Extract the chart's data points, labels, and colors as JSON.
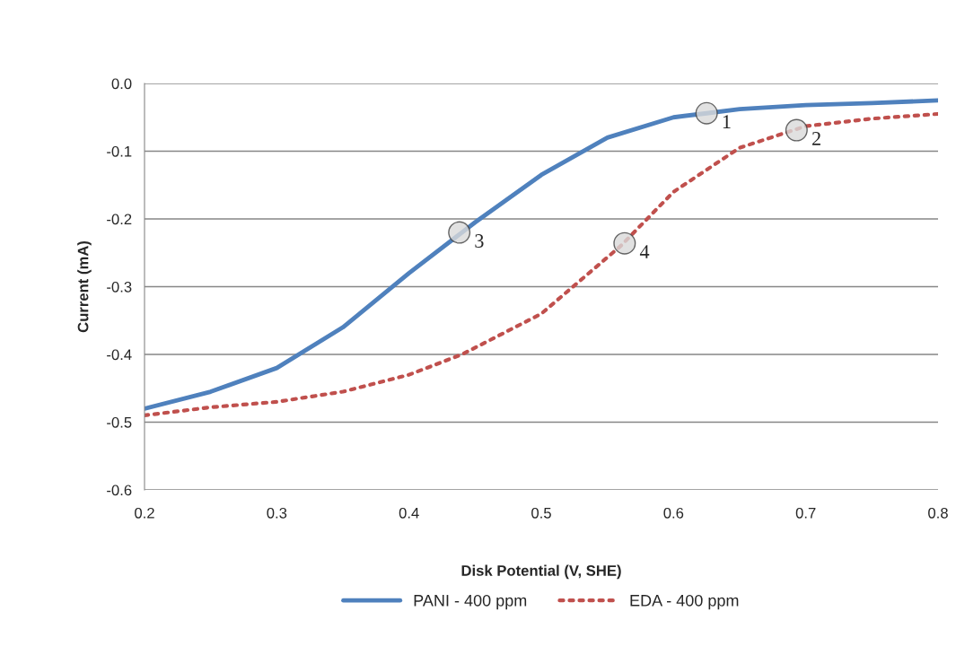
{
  "chart_data": {
    "type": "line",
    "xlabel": "Disk Potential (V, SHE)",
    "ylabel": "Current (mA)",
    "xlim": [
      0.2,
      0.8
    ],
    "xticks": [
      0.2,
      0.3,
      0.4,
      0.5,
      0.6,
      0.7,
      0.8
    ],
    "ylim": [
      -0.6,
      0.0
    ],
    "yticks": [
      -0.6,
      -0.5,
      -0.4,
      -0.3,
      -0.2,
      -0.1,
      {
        "value": 0,
        "label": "0.0"
      }
    ],
    "grid": "y",
    "legend": "bottom",
    "series": [
      {
        "name": "PANI - 400 ppm",
        "color": "#4f81bd",
        "line_style": "solid",
        "x": [
          0.2,
          0.25,
          0.3,
          0.35,
          0.4,
          0.44,
          0.45,
          0.5,
          0.55,
          0.6,
          0.625,
          0.65,
          0.7,
          0.75,
          0.8
        ],
        "values": [
          -0.48,
          -0.455,
          -0.42,
          -0.36,
          -0.28,
          -0.22,
          -0.205,
          -0.135,
          -0.08,
          -0.05,
          -0.044,
          -0.038,
          -0.032,
          -0.029,
          -0.025
        ]
      },
      {
        "name": "EDA - 400 ppm",
        "color": "#c0504d",
        "line_style": "dotted",
        "x": [
          0.2,
          0.25,
          0.3,
          0.35,
          0.4,
          0.44,
          0.5,
          0.53,
          0.56,
          0.6,
          0.65,
          0.7,
          0.75,
          0.8
        ],
        "values": [
          -0.49,
          -0.478,
          -0.47,
          -0.455,
          -0.43,
          -0.4,
          -0.34,
          -0.29,
          -0.24,
          -0.16,
          -0.095,
          -0.063,
          -0.052,
          -0.045
        ]
      }
    ],
    "annotations": [
      {
        "text": "1",
        "x": 0.625,
        "y": -0.044
      },
      {
        "text": "2",
        "x": 0.693,
        "y": -0.069
      },
      {
        "text": "3",
        "x": 0.438,
        "y": -0.22
      },
      {
        "text": "4",
        "x": 0.563,
        "y": -0.236
      }
    ]
  }
}
